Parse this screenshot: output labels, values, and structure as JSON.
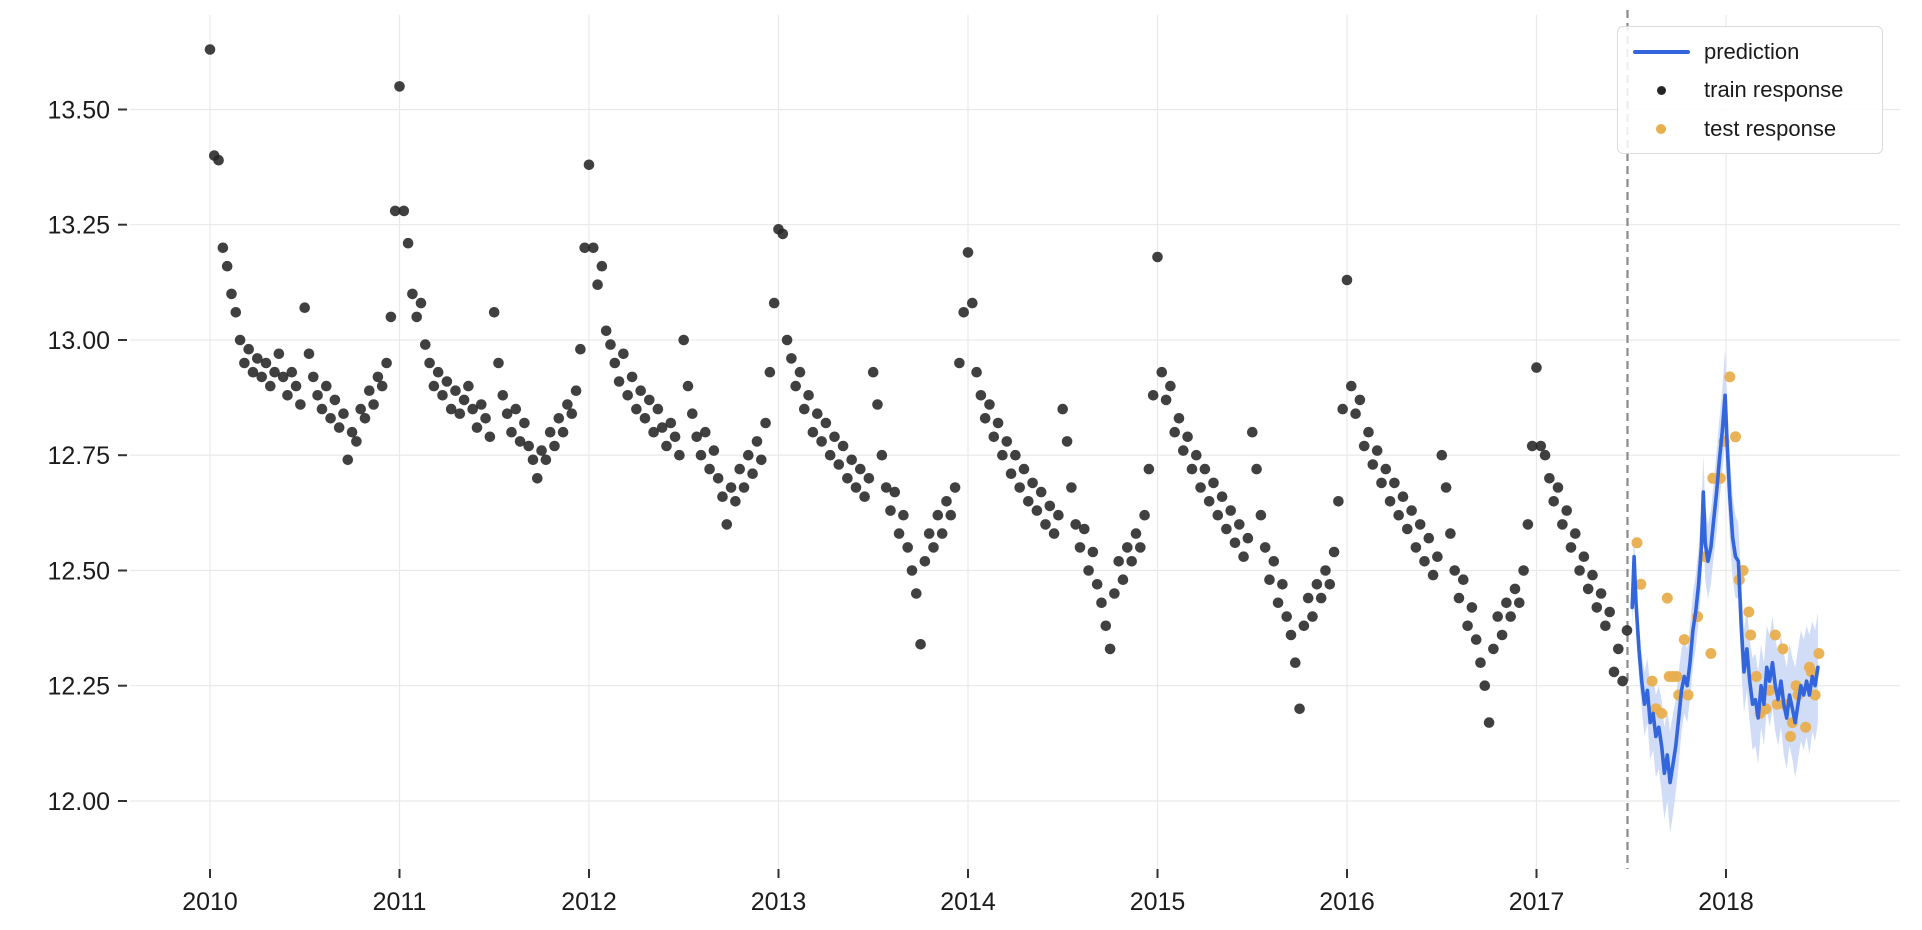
{
  "figure": {
    "background": "#ffffff",
    "text_color": "#1c1c1c"
  },
  "chart_data": {
    "type": "scatter",
    "title": "",
    "xlabel": "",
    "ylabel": "",
    "grid": true,
    "grid_color": "#e9e9e9",
    "tick_color": "#333333",
    "xlim": [
      2009.578,
      2018.918
    ],
    "ylim": [
      11.8525,
      13.7049
    ],
    "x_axis": {
      "ticks": [
        2010,
        2011,
        2012,
        2013,
        2014,
        2015,
        2016,
        2017,
        2018
      ],
      "labels": [
        "2010",
        "2011",
        "2012",
        "2013",
        "2014",
        "2015",
        "2016",
        "2017",
        "2018"
      ]
    },
    "y_axis": {
      "ticks": [
        12.0,
        12.25,
        12.5,
        12.75,
        13.0,
        13.25,
        13.5
      ],
      "labels": [
        "12.00",
        "12.25",
        "12.50",
        "12.75",
        "13.00",
        "13.25",
        "13.50"
      ]
    },
    "cutoff_line": {
      "x": 2017.48,
      "style": "dashed",
      "color": "#8a8a8a"
    },
    "legend_position": "top-right",
    "series": [
      {
        "name": "prediction",
        "type": "line",
        "color": "#3366dd",
        "band_color": "#c9d7f5",
        "points": [
          [
            2017.505,
            12.42,
            0.05
          ],
          [
            2017.515,
            12.53,
            0.05
          ],
          [
            2017.525,
            12.43,
            0.05
          ],
          [
            2017.54,
            12.33,
            0.06
          ],
          [
            2017.555,
            12.26,
            0.06
          ],
          [
            2017.57,
            12.21,
            0.07
          ],
          [
            2017.585,
            12.24,
            0.07
          ],
          [
            2017.6,
            12.17,
            0.08
          ],
          [
            2017.615,
            12.19,
            0.08
          ],
          [
            2017.63,
            12.14,
            0.09
          ],
          [
            2017.645,
            12.16,
            0.09
          ],
          [
            2017.66,
            12.12,
            0.1
          ],
          [
            2017.675,
            12.06,
            0.1
          ],
          [
            2017.69,
            12.1,
            0.1
          ],
          [
            2017.705,
            12.04,
            0.11
          ],
          [
            2017.72,
            12.08,
            0.11
          ],
          [
            2017.735,
            12.12,
            0.1
          ],
          [
            2017.75,
            12.18,
            0.1
          ],
          [
            2017.765,
            12.24,
            0.09
          ],
          [
            2017.78,
            12.27,
            0.08
          ],
          [
            2017.795,
            12.25,
            0.08
          ],
          [
            2017.81,
            12.3,
            0.08
          ],
          [
            2017.825,
            12.37,
            0.08
          ],
          [
            2017.84,
            12.41,
            0.08
          ],
          [
            2017.855,
            12.47,
            0.08
          ],
          [
            2017.87,
            12.55,
            0.08
          ],
          [
            2017.88,
            12.67,
            0.08
          ],
          [
            2017.89,
            12.56,
            0.08
          ],
          [
            2017.905,
            12.52,
            0.08
          ],
          [
            2017.92,
            12.55,
            0.08
          ],
          [
            2017.935,
            12.61,
            0.08
          ],
          [
            2017.95,
            12.67,
            0.09
          ],
          [
            2017.965,
            12.74,
            0.09
          ],
          [
            2017.98,
            12.8,
            0.09
          ],
          [
            2017.995,
            12.88,
            0.1
          ],
          [
            2018.005,
            12.78,
            0.1
          ],
          [
            2018.02,
            12.66,
            0.09
          ],
          [
            2018.035,
            12.57,
            0.09
          ],
          [
            2018.05,
            12.53,
            0.09
          ],
          [
            2018.065,
            12.52,
            0.08
          ],
          [
            2018.08,
            12.38,
            0.09
          ],
          [
            2018.095,
            12.28,
            0.09
          ],
          [
            2018.11,
            12.33,
            0.09
          ],
          [
            2018.125,
            12.26,
            0.09
          ],
          [
            2018.14,
            12.21,
            0.1
          ],
          [
            2018.155,
            12.22,
            0.1
          ],
          [
            2018.17,
            12.18,
            0.1
          ],
          [
            2018.185,
            12.25,
            0.09
          ],
          [
            2018.2,
            12.21,
            0.09
          ],
          [
            2018.215,
            12.29,
            0.09
          ],
          [
            2018.23,
            12.26,
            0.1
          ],
          [
            2018.245,
            12.3,
            0.1
          ],
          [
            2018.26,
            12.25,
            0.1
          ],
          [
            2018.275,
            12.22,
            0.1
          ],
          [
            2018.29,
            12.26,
            0.1
          ],
          [
            2018.305,
            12.21,
            0.11
          ],
          [
            2018.32,
            12.18,
            0.11
          ],
          [
            2018.335,
            12.23,
            0.11
          ],
          [
            2018.35,
            12.2,
            0.11
          ],
          [
            2018.365,
            12.17,
            0.12
          ],
          [
            2018.38,
            12.21,
            0.12
          ],
          [
            2018.395,
            12.25,
            0.12
          ],
          [
            2018.41,
            12.23,
            0.12
          ],
          [
            2018.425,
            12.26,
            0.12
          ],
          [
            2018.44,
            12.23,
            0.13
          ],
          [
            2018.455,
            12.27,
            0.12
          ],
          [
            2018.47,
            12.25,
            0.12
          ],
          [
            2018.485,
            12.29,
            0.12
          ]
        ]
      },
      {
        "name": "train response",
        "type": "scatter",
        "color": "#252525",
        "x_start": 2010.0,
        "x_step": 0.022727,
        "values": [
          13.63,
          13.4,
          13.39,
          13.2,
          13.16,
          13.1,
          13.06,
          13.0,
          12.95,
          12.98,
          12.93,
          12.96,
          12.92,
          12.95,
          12.9,
          12.93,
          12.97,
          12.92,
          12.88,
          12.93,
          12.9,
          12.86,
          13.07,
          12.97,
          12.92,
          12.88,
          12.85,
          12.9,
          12.83,
          12.87,
          12.81,
          12.84,
          12.74,
          12.8,
          12.78,
          12.85,
          12.83,
          12.89,
          12.86,
          12.92,
          12.9,
          12.95,
          13.05,
          13.28,
          13.55,
          13.28,
          13.21,
          13.1,
          13.05,
          13.08,
          12.99,
          12.95,
          12.9,
          12.93,
          12.88,
          12.91,
          12.85,
          12.89,
          12.84,
          12.87,
          12.9,
          12.85,
          12.81,
          12.86,
          12.83,
          12.79,
          13.06,
          12.95,
          12.88,
          12.84,
          12.8,
          12.85,
          12.78,
          12.82,
          12.77,
          12.74,
          12.7,
          12.76,
          12.74,
          12.8,
          12.77,
          12.83,
          12.8,
          12.86,
          12.84,
          12.89,
          12.98,
          13.2,
          13.38,
          13.2,
          13.12,
          13.16,
          13.02,
          12.99,
          12.95,
          12.91,
          12.97,
          12.88,
          12.92,
          12.85,
          12.89,
          12.83,
          12.87,
          12.8,
          12.85,
          12.81,
          12.77,
          12.82,
          12.79,
          12.75,
          13.0,
          12.9,
          12.84,
          12.79,
          12.75,
          12.8,
          12.72,
          12.76,
          12.7,
          12.66,
          12.6,
          12.68,
          12.65,
          12.72,
          12.68,
          12.75,
          12.71,
          12.78,
          12.74,
          12.82,
          12.93,
          13.08,
          13.24,
          13.23,
          13.0,
          12.96,
          12.9,
          12.93,
          12.85,
          12.88,
          12.8,
          12.84,
          12.78,
          12.82,
          12.75,
          12.79,
          12.73,
          12.77,
          12.7,
          12.74,
          12.68,
          12.72,
          12.66,
          12.7,
          12.93,
          12.86,
          12.75,
          12.68,
          12.63,
          12.67,
          12.58,
          12.62,
          12.55,
          12.5,
          12.45,
          12.34,
          12.52,
          12.58,
          12.55,
          12.62,
          12.58,
          12.65,
          12.62,
          12.68,
          12.95,
          13.06,
          13.19,
          13.08,
          12.93,
          12.88,
          12.83,
          12.86,
          12.79,
          12.82,
          12.75,
          12.78,
          12.71,
          12.75,
          12.68,
          12.72,
          12.65,
          12.69,
          12.63,
          12.67,
          12.6,
          12.64,
          12.58,
          12.62,
          12.85,
          12.78,
          12.68,
          12.6,
          12.55,
          12.59,
          12.5,
          12.54,
          12.47,
          12.43,
          12.38,
          12.33,
          12.45,
          12.52,
          12.48,
          12.55,
          12.52,
          12.58,
          12.55,
          12.62,
          12.72,
          12.88,
          13.18,
          12.93,
          12.87,
          12.9,
          12.8,
          12.83,
          12.76,
          12.79,
          12.72,
          12.75,
          12.68,
          12.72,
          12.65,
          12.69,
          12.62,
          12.66,
          12.59,
          12.63,
          12.56,
          12.6,
          12.53,
          12.57,
          12.8,
          12.72,
          12.62,
          12.55,
          12.48,
          12.52,
          12.43,
          12.47,
          12.4,
          12.36,
          12.3,
          12.2,
          12.38,
          12.44,
          12.4,
          12.47,
          12.44,
          12.5,
          12.47,
          12.54,
          12.65,
          12.85,
          13.13,
          12.9,
          12.84,
          12.87,
          12.77,
          12.8,
          12.73,
          12.76,
          12.69,
          12.72,
          12.65,
          12.69,
          12.62,
          12.66,
          12.59,
          12.63,
          12.55,
          12.6,
          12.52,
          12.57,
          12.49,
          12.53,
          12.75,
          12.68,
          12.58,
          12.5,
          12.44,
          12.48,
          12.38,
          12.42,
          12.35,
          12.3,
          12.25,
          12.17,
          12.33,
          12.4,
          12.36,
          12.43,
          12.4,
          12.46,
          12.43,
          12.5,
          12.6,
          12.77,
          12.94,
          12.77,
          12.75,
          12.7,
          12.65,
          12.68,
          12.6,
          12.63,
          12.55,
          12.58,
          12.5,
          12.53,
          12.46,
          12.49,
          12.42,
          12.45,
          12.38,
          12.41,
          12.28,
          12.33,
          12.26,
          12.37
        ]
      },
      {
        "name": "test response",
        "type": "scatter",
        "color": "#e9ae4e",
        "points": [
          [
            2017.53,
            12.56
          ],
          [
            2017.55,
            12.47
          ],
          [
            2017.61,
            12.26
          ],
          [
            2017.63,
            12.2
          ],
          [
            2017.66,
            12.19
          ],
          [
            2017.69,
            12.44
          ],
          [
            2017.7,
            12.27
          ],
          [
            2017.72,
            12.27
          ],
          [
            2017.74,
            12.27
          ],
          [
            2017.75,
            12.23
          ],
          [
            2017.78,
            12.35
          ],
          [
            2017.8,
            12.23
          ],
          [
            2017.85,
            12.4
          ],
          [
            2017.89,
            12.53
          ],
          [
            2017.92,
            12.32
          ],
          [
            2017.93,
            12.7
          ],
          [
            2017.97,
            12.7
          ],
          [
            2017.99,
            12.78
          ],
          [
            2018.02,
            12.92
          ],
          [
            2018.05,
            12.79
          ],
          [
            2018.07,
            12.48
          ],
          [
            2018.09,
            12.5
          ],
          [
            2018.12,
            12.41
          ],
          [
            2018.13,
            12.36
          ],
          [
            2018.16,
            12.27
          ],
          [
            2018.18,
            12.19
          ],
          [
            2018.21,
            12.2
          ],
          [
            2018.23,
            12.24
          ],
          [
            2018.26,
            12.36
          ],
          [
            2018.27,
            12.21
          ],
          [
            2018.3,
            12.33
          ],
          [
            2018.31,
            12.21
          ],
          [
            2018.34,
            12.14
          ],
          [
            2018.35,
            12.17
          ],
          [
            2018.37,
            12.25
          ],
          [
            2018.38,
            12.23
          ],
          [
            2018.42,
            12.16
          ],
          [
            2018.44,
            12.29
          ],
          [
            2018.45,
            12.28
          ],
          [
            2018.47,
            12.23
          ],
          [
            2018.49,
            12.32
          ]
        ]
      }
    ]
  }
}
